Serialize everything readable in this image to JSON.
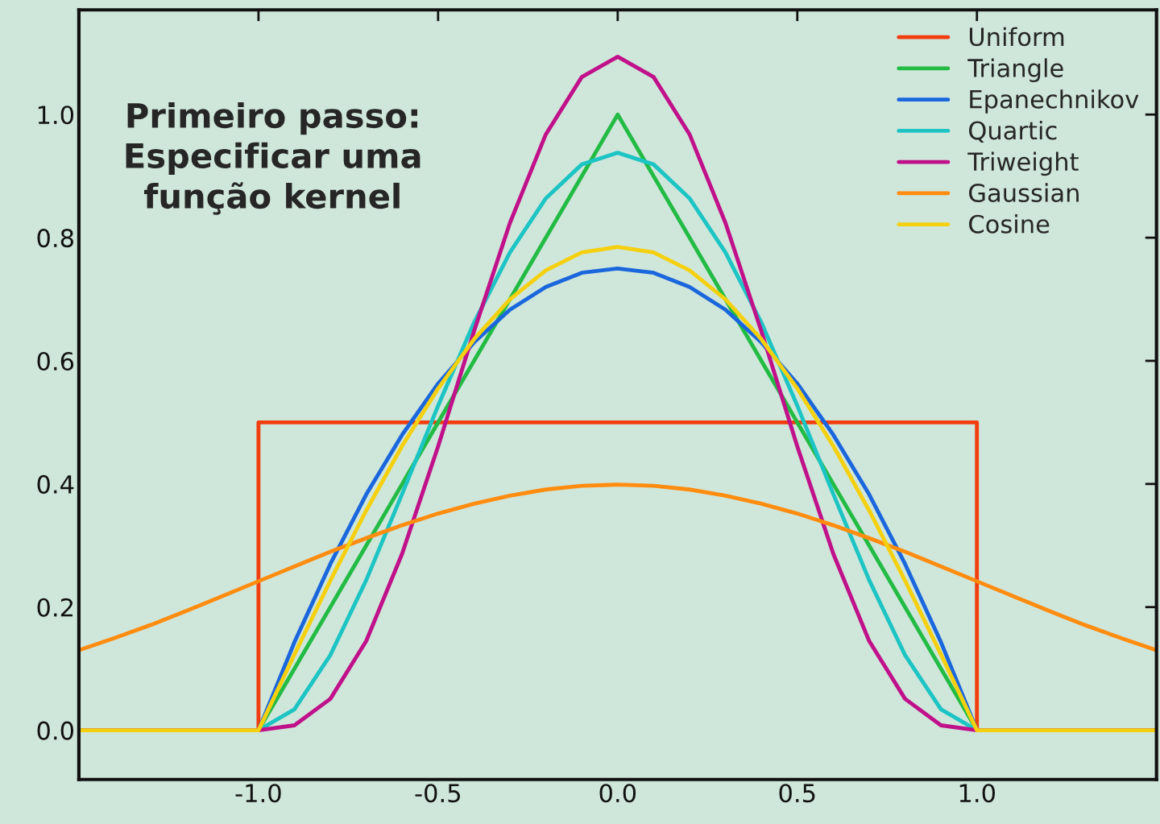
{
  "chart_data": {
    "type": "line",
    "annotations": [
      "Primeiro passo:\nEspecificar uma\nfunção kernel"
    ],
    "x": [
      -1.5,
      -1.0,
      -0.9,
      -0.8,
      -0.7,
      -0.6,
      -0.5,
      -0.4,
      -0.3,
      -0.2,
      -0.1,
      0.0,
      0.1,
      0.2,
      0.3,
      0.4,
      0.5,
      0.6,
      0.7,
      0.8,
      0.9,
      1.0,
      1.5
    ],
    "series": [
      {
        "name": "Uniform",
        "color": "#f23d0f",
        "x": [
          -1.5,
          -1.0,
          -1.0,
          1.0,
          1.0,
          1.5
        ],
        "values": [
          0,
          0,
          0.5,
          0.5,
          0,
          0
        ]
      },
      {
        "name": "Triangle",
        "color": "#22bb44",
        "values": [
          0,
          0,
          0.1,
          0.2,
          0.3,
          0.4,
          0.5,
          0.6,
          0.7,
          0.8,
          0.9,
          1.0,
          0.9,
          0.8,
          0.7,
          0.6,
          0.5,
          0.4,
          0.3,
          0.2,
          0.1,
          0,
          0
        ]
      },
      {
        "name": "Epanechnikov",
        "color": "#1a66dd",
        "values": [
          0,
          0,
          0.143,
          0.27,
          0.383,
          0.48,
          0.563,
          0.63,
          0.683,
          0.72,
          0.743,
          0.75,
          0.743,
          0.72,
          0.683,
          0.63,
          0.563,
          0.48,
          0.383,
          0.27,
          0.143,
          0,
          0
        ]
      },
      {
        "name": "Quartic",
        "color": "#1cc4c4",
        "values": [
          0,
          0,
          0.034,
          0.122,
          0.244,
          0.384,
          0.527,
          0.662,
          0.776,
          0.864,
          0.919,
          0.938,
          0.919,
          0.864,
          0.776,
          0.662,
          0.527,
          0.384,
          0.244,
          0.122,
          0.034,
          0,
          0
        ]
      },
      {
        "name": "Triweight",
        "color": "#c0108a",
        "values": [
          0,
          0,
          0.008,
          0.051,
          0.145,
          0.287,
          0.461,
          0.648,
          0.824,
          0.968,
          1.061,
          1.094,
          1.061,
          0.968,
          0.824,
          0.648,
          0.461,
          0.287,
          0.145,
          0.051,
          0.008,
          0,
          0
        ]
      },
      {
        "name": "Gaussian",
        "color": "#ff8c0f",
        "x": [
          -1.5,
          -1.4,
          -1.3,
          -1.2,
          -1.1,
          -1.0,
          -0.9,
          -0.8,
          -0.7,
          -0.6,
          -0.5,
          -0.4,
          -0.3,
          -0.2,
          -0.1,
          0.0,
          0.1,
          0.2,
          0.3,
          0.4,
          0.5,
          0.6,
          0.7,
          0.8,
          0.9,
          1.0,
          1.1,
          1.2,
          1.3,
          1.4,
          1.5
        ],
        "values": [
          0.13,
          0.15,
          0.171,
          0.194,
          0.218,
          0.242,
          0.266,
          0.29,
          0.312,
          0.333,
          0.352,
          0.368,
          0.381,
          0.391,
          0.397,
          0.399,
          0.397,
          0.391,
          0.381,
          0.368,
          0.352,
          0.333,
          0.312,
          0.29,
          0.266,
          0.242,
          0.218,
          0.194,
          0.171,
          0.15,
          0.13
        ]
      },
      {
        "name": "Cosine",
        "color": "#f5d00f",
        "values": [
          0,
          0,
          0.123,
          0.243,
          0.357,
          0.462,
          0.555,
          0.635,
          0.7,
          0.747,
          0.776,
          0.785,
          0.776,
          0.747,
          0.7,
          0.635,
          0.555,
          0.462,
          0.357,
          0.243,
          0.123,
          0,
          0
        ]
      }
    ],
    "xlim": [
      -1.5,
      1.5
    ],
    "ylim": [
      -0.08,
      1.17
    ],
    "xticks": [
      {
        "value": -1.0,
        "label": "-1.0"
      },
      {
        "value": -0.5,
        "label": "-0.5"
      },
      {
        "value": 0.0,
        "label": "0.0"
      },
      {
        "value": 0.5,
        "label": "0.5"
      },
      {
        "value": 1.0,
        "label": "1.0"
      }
    ],
    "yticks": [
      {
        "value": 0.0,
        "label": "0.0"
      },
      {
        "value": 0.2,
        "label": "0.2"
      },
      {
        "value": 0.4,
        "label": "0.4"
      },
      {
        "value": 0.6,
        "label": "0.6"
      },
      {
        "value": 0.8,
        "label": "0.8"
      },
      {
        "value": 1.0,
        "label": "1.0"
      }
    ],
    "legend": "top right",
    "line_style": "solid"
  }
}
